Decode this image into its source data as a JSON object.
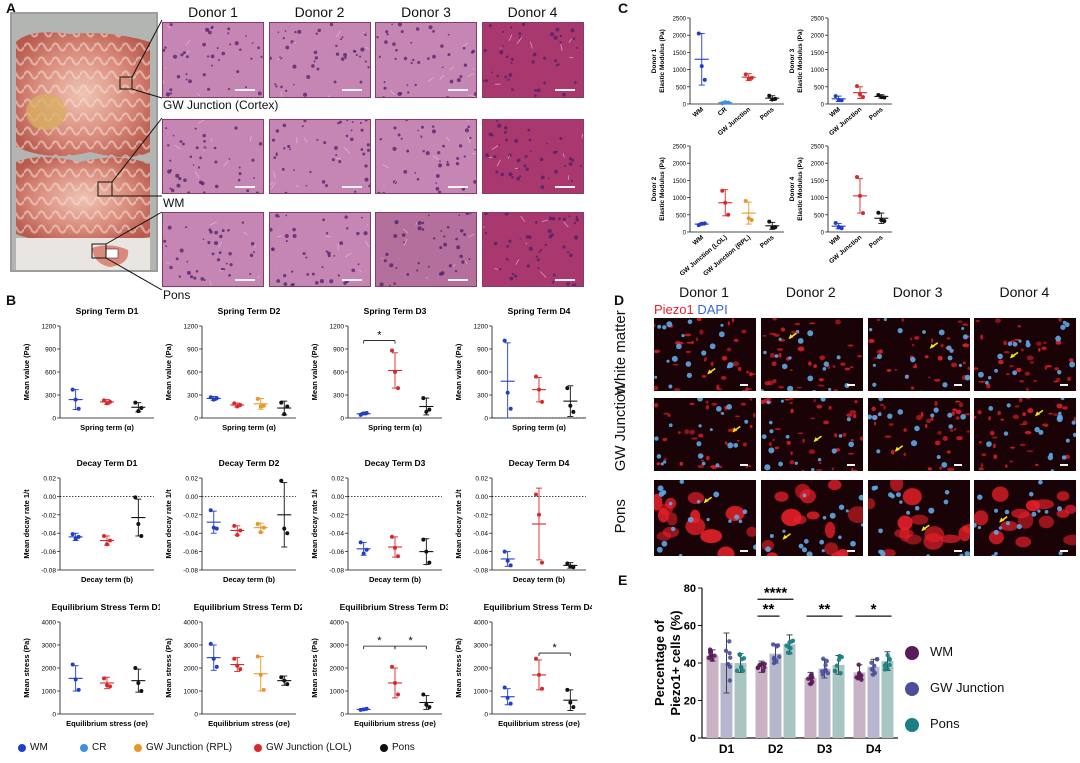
{
  "panels": {
    "a": "A",
    "b": "B",
    "c": "C",
    "d": "D",
    "e": "E"
  },
  "panel_a": {
    "donors": [
      "Donor 1",
      "Donor 2",
      "Donor 3",
      "Donor 4"
    ],
    "row_labels": [
      "GW Junction (Cortex)",
      "WM",
      "Pons"
    ]
  },
  "panel_d": {
    "donors": [
      "Donor 1",
      "Donor 2",
      "Donor 3",
      "Donor 4"
    ],
    "stain_piezo": "Piezo1",
    "stain_dapi": "DAPI",
    "row_labels": [
      "White matter",
      "GW Junction",
      "Pons"
    ],
    "colors": {
      "piezo": "#e8202a",
      "dapi": "#3a64d8"
    }
  },
  "legend_b": {
    "items": [
      {
        "label": "WM",
        "color": "#1f3fc8"
      },
      {
        "label": "CR",
        "color": "#3d8fe0"
      },
      {
        "label": "GW Junction (RPL)",
        "color": "#e8962a"
      },
      {
        "label": "GW Junction (LOL)",
        "color": "#d62a2a"
      },
      {
        "label": "Pons",
        "color": "#111111"
      }
    ]
  },
  "chart_data": [
    {
      "id": "B-spring-D1",
      "type": "scatter",
      "title": "Spring Term D1",
      "ylabel": "Mean value (Pa)",
      "xlabel": "Spring term (α)",
      "ylim": [
        0,
        1200
      ],
      "yticks": [
        0,
        300,
        600,
        900,
        1200
      ],
      "groups": [
        {
          "color": "#1f3fc8",
          "mean": 240,
          "sd": 130,
          "points": [
            370,
            240,
            120
          ]
        },
        {
          "color": "#d62a2a",
          "mean": 210,
          "sd": 30,
          "points": [
            230,
            190,
            210
          ]
        },
        {
          "color": "#111111",
          "mean": 140,
          "sd": 60,
          "points": [
            200,
            90,
            130
          ]
        }
      ]
    },
    {
      "id": "B-spring-D2",
      "type": "scatter",
      "title": "Spring Term D2",
      "ylabel": "Mean value (Pa)",
      "xlabel": "Spring term (α)",
      "ylim": [
        0,
        1200
      ],
      "yticks": [
        0,
        300,
        600,
        900,
        1200
      ],
      "groups": [
        {
          "color": "#1f3fc8",
          "mean": 255,
          "sd": 25,
          "points": [
            270,
            240,
            260
          ]
        },
        {
          "color": "#d62a2a",
          "mean": 170,
          "sd": 25,
          "points": [
            190,
            150,
            170
          ]
        },
        {
          "color": "#e8962a",
          "mean": 185,
          "sd": 70,
          "points": [
            250,
            150,
            160
          ]
        },
        {
          "color": "#111111",
          "mean": 130,
          "sd": 90,
          "points": [
            200,
            50,
            150
          ]
        }
      ]
    },
    {
      "id": "B-spring-D3",
      "type": "scatter",
      "title": "Spring Term D3",
      "ylabel": "Mean value (Pa)",
      "xlabel": "Spring term (α)",
      "ylim": [
        0,
        1200
      ],
      "yticks": [
        0,
        300,
        600,
        900,
        1200
      ],
      "groups": [
        {
          "color": "#1f3fc8",
          "mean": 55,
          "sd": 15,
          "points": [
            40,
            60,
            65
          ]
        },
        {
          "color": "#d62a2a",
          "mean": 620,
          "sd": 230,
          "points": [
            880,
            600,
            390
          ]
        },
        {
          "color": "#111111",
          "mean": 150,
          "sd": 110,
          "points": [
            260,
            80,
            110
          ]
        }
      ],
      "brackets": [
        {
          "from": 0,
          "to": 1,
          "y": 1010,
          "label": "*"
        }
      ]
    },
    {
      "id": "B-spring-D4",
      "type": "scatter",
      "title": "Spring Term D4",
      "ylabel": "Mean value (Pa)",
      "xlabel": "Spring term (α)",
      "ylim": [
        0,
        1200
      ],
      "yticks": [
        0,
        300,
        600,
        900,
        1200
      ],
      "baseline": 0,
      "groups": [
        {
          "color": "#1f3fc8",
          "mean": 480,
          "sd": 500,
          "points": [
            1010,
            330,
            120
          ]
        },
        {
          "color": "#d62a2a",
          "mean": 370,
          "sd": 160,
          "points": [
            540,
            370,
            210
          ]
        },
        {
          "color": "#111111",
          "mean": 220,
          "sd": 200,
          "points": [
            390,
            160,
            80
          ]
        }
      ]
    },
    {
      "id": "B-decay-D1",
      "type": "scatter",
      "title": "Decay Term D1",
      "ylabel": "Mean decay rate 1/t",
      "xlabel": "Decay term (b)",
      "ylim": [
        -0.08,
        0.02
      ],
      "yticks": [
        0.02,
        0.0,
        -0.02,
        -0.04,
        -0.06,
        -0.08
      ],
      "baseline": 0,
      "groups": [
        {
          "color": "#1f3fc8",
          "mean": -0.044,
          "sd": 0.004,
          "points": [
            -0.041,
            -0.046,
            -0.044
          ]
        },
        {
          "color": "#d62a2a",
          "mean": -0.048,
          "sd": 0.005,
          "points": [
            -0.043,
            -0.052,
            -0.048
          ]
        },
        {
          "color": "#111111",
          "mean": -0.023,
          "sd": 0.02,
          "points": [
            -0.001,
            -0.03,
            -0.043
          ]
        }
      ]
    },
    {
      "id": "B-decay-D2",
      "type": "scatter",
      "title": "Decay Term D2",
      "ylabel": "Mean decay rate 1/t",
      "xlabel": "Decay term (b)",
      "ylim": [
        -0.08,
        0.02
      ],
      "yticks": [
        0.02,
        0.0,
        -0.02,
        -0.04,
        -0.06,
        -0.08
      ],
      "baseline": 0,
      "groups": [
        {
          "color": "#1f3fc8",
          "mean": -0.028,
          "sd": 0.012,
          "points": [
            -0.015,
            -0.034,
            -0.035
          ]
        },
        {
          "color": "#d62a2a",
          "mean": -0.037,
          "sd": 0.005,
          "points": [
            -0.032,
            -0.042,
            -0.037
          ]
        },
        {
          "color": "#e8962a",
          "mean": -0.034,
          "sd": 0.005,
          "points": [
            -0.03,
            -0.039,
            -0.034
          ]
        },
        {
          "color": "#111111",
          "mean": -0.02,
          "sd": 0.035,
          "points": [
            0.017,
            -0.035,
            -0.04
          ]
        }
      ]
    },
    {
      "id": "B-decay-D3",
      "type": "scatter",
      "title": "Decay Term D3",
      "ylabel": "Mean decay rate 1/t",
      "xlabel": "Decay term (b)",
      "ylim": [
        -0.08,
        0.02
      ],
      "yticks": [
        0.02,
        0.0,
        -0.02,
        -0.04,
        -0.06,
        -0.08
      ],
      "baseline": 0,
      "groups": [
        {
          "color": "#1f3fc8",
          "mean": -0.057,
          "sd": 0.007,
          "points": [
            -0.05,
            -0.062,
            -0.058
          ]
        },
        {
          "color": "#d62a2a",
          "mean": -0.055,
          "sd": 0.011,
          "points": [
            -0.044,
            -0.056,
            -0.065
          ]
        },
        {
          "color": "#111111",
          "mean": -0.06,
          "sd": 0.014,
          "points": [
            -0.047,
            -0.06,
            -0.072
          ]
        }
      ]
    },
    {
      "id": "B-decay-D4",
      "type": "scatter",
      "title": "Decay Term D4",
      "ylabel": "Mean decay rate 1/t",
      "xlabel": "Decay term (b)",
      "ylim": [
        -0.08,
        0.02
      ],
      "yticks": [
        0.02,
        0.0,
        -0.02,
        -0.04,
        -0.06,
        -0.08
      ],
      "baseline": 0,
      "groups": [
        {
          "color": "#1f3fc8",
          "mean": -0.068,
          "sd": 0.008,
          "points": [
            -0.06,
            -0.07,
            -0.075
          ]
        },
        {
          "color": "#d62a2a",
          "mean": -0.03,
          "sd": 0.039,
          "points": [
            0.002,
            -0.02,
            -0.072
          ]
        },
        {
          "color": "#111111",
          "mean": -0.075,
          "sd": 0.003,
          "points": [
            -0.073,
            -0.076,
            -0.077
          ]
        }
      ]
    },
    {
      "id": "B-eq-D1",
      "type": "scatter",
      "title": "Equilibrium Stress Term D1",
      "ylabel": "Mean stress (Pa)",
      "xlabel": "Equilibrium stress (σe)",
      "ylim": [
        0,
        4000
      ],
      "yticks": [
        0,
        1000,
        2000,
        3000,
        4000
      ],
      "groups": [
        {
          "color": "#1f3fc8",
          "mean": 1550,
          "sd": 550,
          "points": [
            2150,
            1500,
            1050
          ]
        },
        {
          "color": "#d62a2a",
          "mean": 1350,
          "sd": 250,
          "points": [
            1550,
            1250,
            1200
          ]
        },
        {
          "color": "#111111",
          "mean": 1450,
          "sd": 500,
          "points": [
            2000,
            1350,
            1000
          ]
        }
      ]
    },
    {
      "id": "B-eq-D2",
      "type": "scatter",
      "title": "Equilibrium Stress Term D2",
      "ylabel": "Mean stress (Pa)",
      "xlabel": "Equilibrium stress (σe)",
      "ylim": [
        0,
        4000
      ],
      "yticks": [
        0,
        1000,
        2000,
        3000,
        4000
      ],
      "groups": [
        {
          "color": "#1f3fc8",
          "mean": 2450,
          "sd": 550,
          "points": [
            3050,
            2400,
            2050
          ]
        },
        {
          "color": "#d62a2a",
          "mean": 2150,
          "sd": 300,
          "points": [
            2400,
            2100,
            1950
          ]
        },
        {
          "color": "#e8962a",
          "mean": 1750,
          "sd": 750,
          "points": [
            2500,
            1700,
            1050
          ]
        },
        {
          "color": "#111111",
          "mean": 1450,
          "sd": 200,
          "points": [
            1600,
            1450,
            1300
          ]
        }
      ]
    },
    {
      "id": "B-eq-D3",
      "type": "scatter",
      "title": "Equilibrium Stress Term D3",
      "ylabel": "Mean stress (Pa)",
      "xlabel": "Equilibrium stress (σe)",
      "ylim": [
        0,
        4000
      ],
      "yticks": [
        0,
        1000,
        2000,
        3000,
        4000
      ],
      "groups": [
        {
          "color": "#1f3fc8",
          "mean": 200,
          "sd": 40,
          "points": [
            180,
            200,
            230
          ]
        },
        {
          "color": "#d62a2a",
          "mean": 1350,
          "sd": 650,
          "points": [
            2050,
            1350,
            850
          ]
        },
        {
          "color": "#111111",
          "mean": 500,
          "sd": 300,
          "points": [
            850,
            400,
            300
          ]
        }
      ],
      "brackets": [
        {
          "from": 0,
          "to": 1,
          "y": 2950,
          "label": "*"
        },
        {
          "from": 1,
          "to": 2,
          "y": 2950,
          "label": "*"
        }
      ]
    },
    {
      "id": "B-eq-D4",
      "type": "scatter",
      "title": "Equilibrium Stress Term D4",
      "ylabel": "Mean stress (Pa)",
      "xlabel": "Equilibrium stress (σe)",
      "ylim": [
        0,
        4000
      ],
      "yticks": [
        0,
        1000,
        2000,
        3000,
        4000
      ],
      "groups": [
        {
          "color": "#1f3fc8",
          "mean": 750,
          "sd": 350,
          "points": [
            1150,
            700,
            450
          ]
        },
        {
          "color": "#d62a2a",
          "mean": 1700,
          "sd": 650,
          "points": [
            2400,
            1700,
            1100
          ]
        },
        {
          "color": "#111111",
          "mean": 600,
          "sd": 450,
          "points": [
            1050,
            500,
            300
          ]
        }
      ],
      "brackets": [
        {
          "from": 1,
          "to": 2,
          "y": 2650,
          "label": "*"
        }
      ]
    },
    {
      "id": "C-donor1",
      "type": "scatter",
      "ylabel_line1": "Donor 1",
      "ylabel": "Elastic Modulus (Pa)",
      "ylim": [
        0,
        2500
      ],
      "yticks": [
        0,
        500,
        1000,
        1500,
        2000,
        2500
      ],
      "categories": [
        "WM",
        "CR",
        "GW Junction",
        "Pons"
      ],
      "groups": [
        {
          "color": "#1f3fc8",
          "mean": 1300,
          "sd": 750,
          "points": [
            2050,
            1100,
            700
          ]
        },
        {
          "color": "#3d8fe0",
          "mean": 40,
          "sd": 20,
          "points": [
            20,
            50,
            40
          ]
        },
        {
          "color": "#d62a2a",
          "mean": 780,
          "sd": 100,
          "points": [
            860,
            730,
            760
          ]
        },
        {
          "color": "#111111",
          "mean": 170,
          "sd": 70,
          "points": [
            240,
            130,
            150
          ]
        }
      ]
    },
    {
      "id": "C-donor3",
      "type": "scatter",
      "ylabel_line1": "Donor 3",
      "ylabel": "Elastic Modulus (Pa)",
      "ylim": [
        0,
        2500
      ],
      "yticks": [
        0,
        500,
        1000,
        1500,
        2000,
        2500
      ],
      "categories": [
        "WM",
        "GW Junction",
        "Pons"
      ],
      "groups": [
        {
          "color": "#1f3fc8",
          "mean": 150,
          "sd": 80,
          "points": [
            230,
            120,
            110
          ]
        },
        {
          "color": "#d62a2a",
          "mean": 330,
          "sd": 170,
          "points": [
            520,
            280,
            200
          ]
        },
        {
          "color": "#111111",
          "mean": 220,
          "sd": 50,
          "points": [
            260,
            200,
            190
          ]
        }
      ]
    },
    {
      "id": "C-donor2",
      "type": "scatter",
      "ylabel_line1": "Donor 2",
      "ylabel": "Elastic Modulus (Pa)",
      "ylim": [
        0,
        2500
      ],
      "yticks": [
        0,
        500,
        1000,
        1500,
        2000,
        2500
      ],
      "categories": [
        "WM",
        "GW Junction (LOL)",
        "GW Junction (RPL)",
        "Pons"
      ],
      "groups": [
        {
          "color": "#1f3fc8",
          "mean": 230,
          "sd": 30,
          "points": [
            200,
            240,
            250
          ]
        },
        {
          "color": "#d62a2a",
          "mean": 850,
          "sd": 380,
          "points": [
            1200,
            850,
            500
          ]
        },
        {
          "color": "#e8962a",
          "mean": 550,
          "sd": 320,
          "points": [
            900,
            400,
            350
          ]
        },
        {
          "color": "#111111",
          "mean": 180,
          "sd": 100,
          "points": [
            300,
            120,
            140
          ]
        }
      ]
    },
    {
      "id": "C-donor4",
      "type": "scatter",
      "ylabel_line1": "Donor 4",
      "ylabel": "Elastic Modulus (Pa)",
      "ylim": [
        0,
        2500
      ],
      "yticks": [
        0,
        500,
        1000,
        1500,
        2000,
        2500
      ],
      "categories": [
        "WM",
        "GW Junction",
        "Pons"
      ],
      "groups": [
        {
          "color": "#1f3fc8",
          "mean": 170,
          "sd": 80,
          "points": [
            260,
            150,
            110
          ]
        },
        {
          "color": "#d62a2a",
          "mean": 1050,
          "sd": 500,
          "points": [
            1600,
            1050,
            550
          ]
        },
        {
          "color": "#111111",
          "mean": 400,
          "sd": 150,
          "points": [
            560,
            350,
            320
          ]
        }
      ]
    },
    {
      "id": "E",
      "type": "bar",
      "ylabel": "Percentage of Piezo1+ cells (%)",
      "ylim": [
        0,
        80
      ],
      "yticks": [
        0,
        20,
        40,
        60,
        80
      ],
      "categories": [
        "D1",
        "D2",
        "D3",
        "D4"
      ],
      "series": [
        {
          "name": "WM",
          "color": "#5a1a5a",
          "bar": "#c9b2c3",
          "values": [
            44,
            38,
            32,
            35
          ],
          "sd": [
            3,
            3,
            3,
            4
          ]
        },
        {
          "name": "GW Junction",
          "color": "#4a4f9a",
          "bar": "#b6b7cf",
          "values": [
            40,
            45,
            37,
            38
          ],
          "sd": [
            16,
            5,
            5,
            4
          ]
        },
        {
          "name": "Pons",
          "color": "#1a7f82",
          "bar": "#a8c5c4",
          "values": [
            40,
            50,
            39,
            41
          ],
          "sd": [
            5,
            5,
            5,
            5
          ]
        }
      ],
      "brackets": [
        {
          "cat": 1,
          "from": 0,
          "to": 2,
          "y": 74,
          "label": "****"
        },
        {
          "cat": 1,
          "from": 0,
          "to": 1,
          "y": 65,
          "label": "**"
        },
        {
          "cat": 2,
          "from": 0,
          "to": 2,
          "y": 65,
          "label": "**"
        },
        {
          "cat": 3,
          "from": 0,
          "to": 2,
          "y": 65,
          "label": "*"
        }
      ]
    }
  ]
}
